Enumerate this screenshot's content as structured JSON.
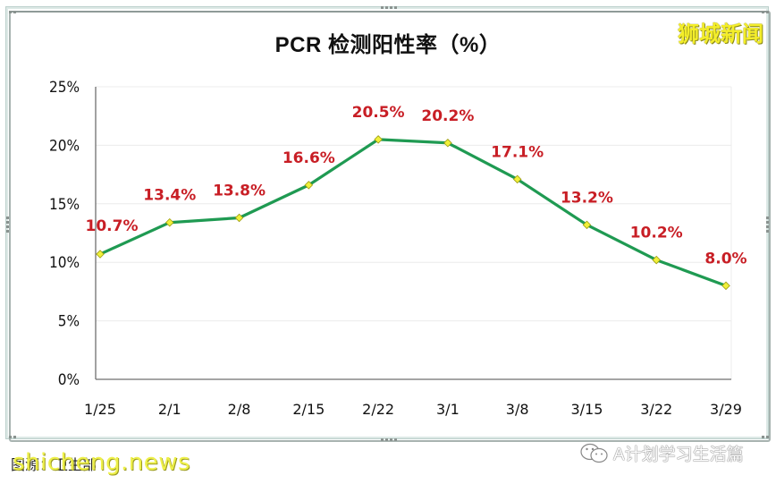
{
  "chart_data": {
    "type": "line",
    "title": "PCR 检测阳性率（%）",
    "xlabel": "",
    "ylabel": "",
    "categories": [
      "1/25",
      "2/1",
      "2/8",
      "2/15",
      "2/22",
      "3/1",
      "3/8",
      "3/15",
      "3/22",
      "3/29"
    ],
    "series": [
      {
        "name": "PCR 检测阳性率",
        "values": [
          10.7,
          13.4,
          13.8,
          16.6,
          20.5,
          20.2,
          17.1,
          13.2,
          10.2,
          8.0
        ],
        "labels": [
          "10.7%",
          "13.4%",
          "13.8%",
          "16.6%",
          "20.5%",
          "20.2%",
          "17.1%",
          "13.2%",
          "10.2%",
          "8.0%"
        ],
        "line_color": "#1f9a52",
        "marker_color": "#f0f03a",
        "label_color": "#c81e25"
      }
    ],
    "yticks": [
      "0%",
      "5%",
      "10%",
      "15%",
      "20%",
      "25%"
    ],
    "ylim": [
      0,
      25
    ],
    "grid": true,
    "legend": "none"
  },
  "watermarks": {
    "top_right": "狮城新闻",
    "bottom_left_site": "shicheng.news",
    "bottom_left_credit": "图源：卫生部",
    "bottom_right": "A计划学习生活篇"
  }
}
